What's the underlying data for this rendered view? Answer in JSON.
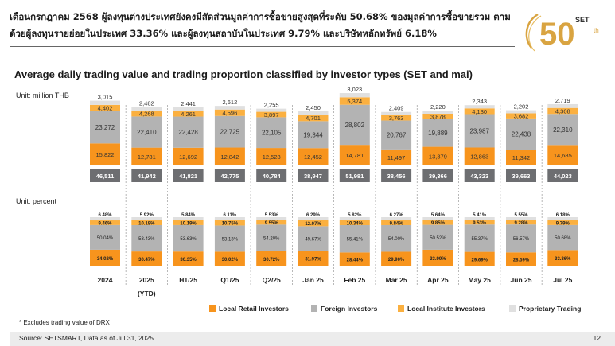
{
  "headline": "เดือนกรกฎาคม 2568 ผู้ลงทุนต่างประเทศยังคงมีสัดส่วนมูลค่าการซื้อขายสูงสุดที่ระดับ 50.68% ของมูลค่าการซื้อขายรวม ตามด้วยผู้ลงทุนรายย่อยในประเทศ 33.36% และผู้ลงทุนสถาบันในประเทศ 9.79% และบริษัทหลักทรัพย์ 6.18%",
  "logo": {
    "text": "SET",
    "number": "50",
    "suffix": "th"
  },
  "title": "Average daily trading value and trading proportion classified by investor types (SET and mai)",
  "unit_value": "Unit: million THB",
  "unit_percent": "Unit: percent",
  "footnote": "* Excludes trading value of DRX",
  "source": "Source: SETSMART, Data as of Jul 31, 2025",
  "page_number": "12",
  "colors": {
    "retail": "#f7941d",
    "foreign": "#b3b3b3",
    "institute": "#fbb040",
    "proprietary": "#e0e0e0",
    "total_box": "#6d6e71",
    "separator": "#9a9a9a"
  },
  "legend": [
    {
      "key": "retail",
      "label": "Local Retail Investors"
    },
    {
      "key": "foreign",
      "label": "Foreign Investors"
    },
    {
      "key": "institute",
      "label": "Local Institute Investors"
    },
    {
      "key": "proprietary",
      "label": "Proprietary Trading"
    }
  ],
  "chart_data": [
    {
      "type": "bar",
      "stacked": true,
      "unit": "million THB",
      "categories": [
        "2024",
        "2025",
        "H1/25",
        "Q1/25",
        "Q2/25",
        "Jan 25",
        "Feb 25",
        "Mar 25",
        "Apr 25",
        "May 25",
        "Jun 25",
        "Jul 25"
      ],
      "category_sublabels": [
        "",
        "(YTD)",
        "",
        "",
        "",
        "",
        "",
        "",
        "",
        "",
        "",
        ""
      ],
      "series": [
        {
          "name": "Local Retail Investors",
          "key": "retail",
          "values": [
            "15,822",
            "12,781",
            "12,692",
            "12,842",
            "12,528",
            "12,452",
            "14,781",
            "11,497",
            "13,379",
            "12,863",
            "11,342",
            "14,685"
          ]
        },
        {
          "name": "Foreign Investors",
          "key": "foreign",
          "values": [
            "23,272",
            "22,410",
            "22,428",
            "22,725",
            "22,105",
            "19,344",
            "28,802",
            "20,767",
            "19,889",
            "23,987",
            "22,438",
            "22,310"
          ]
        },
        {
          "name": "Local Institute Investors",
          "key": "institute",
          "values": [
            "4,402",
            "4,268",
            "4,261",
            "4,596",
            "3,897",
            "4,701",
            "5,374",
            "3,763",
            "3,878",
            "4,130",
            "3,682",
            "4,308"
          ]
        },
        {
          "name": "Proprietary Trading",
          "key": "proprietary",
          "values": [
            "3,015",
            "2,482",
            "2,441",
            "2,612",
            "2,255",
            "2,450",
            "3,023",
            "2,409",
            "2,220",
            "2,343",
            "2,202",
            "2,719"
          ]
        }
      ],
      "totals": [
        "46,511",
        "41,942",
        "41,821",
        "42,775",
        "40,784",
        "38,947",
        "51,981",
        "38,456",
        "39,366",
        "43,323",
        "39,663",
        "44,023"
      ]
    },
    {
      "type": "bar",
      "stacked": true,
      "unit": "percent",
      "categories": [
        "2024",
        "2025",
        "H1/25",
        "Q1/25",
        "Q2/25",
        "Jan 25",
        "Feb 25",
        "Mar 25",
        "Apr 25",
        "May 25",
        "Jun 25",
        "Jul 25"
      ],
      "series": [
        {
          "name": "Local Retail Investors",
          "key": "retail",
          "values": [
            "34.02%",
            "30.47%",
            "30.35%",
            "30.02%",
            "30.72%",
            "31.97%",
            "28.44%",
            "29.90%",
            "33.99%",
            "29.69%",
            "28.59%",
            "33.36%"
          ]
        },
        {
          "name": "Foreign Investors",
          "key": "foreign",
          "values": [
            "50.04%",
            "53.43%",
            "53.63%",
            "53.13%",
            "54.20%",
            "49.67%",
            "55.41%",
            "54.00%",
            "50.52%",
            "55.37%",
            "56.57%",
            "50.68%"
          ]
        },
        {
          "name": "Local Institute Investors",
          "key": "institute",
          "values": [
            "9.46%",
            "10.18%",
            "10.19%",
            "10.75%",
            "9.55%",
            "12.07%",
            "10.34%",
            "9.84%",
            "9.85%",
            "9.53%",
            "9.28%",
            "9.79%"
          ]
        },
        {
          "name": "Proprietary Trading",
          "key": "proprietary",
          "values": [
            "6.48%",
            "5.92%",
            "5.84%",
            "6.11%",
            "5.53%",
            "6.29%",
            "5.82%",
            "6.27%",
            "5.64%",
            "5.41%",
            "5.55%",
            "6.18%"
          ]
        }
      ]
    }
  ]
}
